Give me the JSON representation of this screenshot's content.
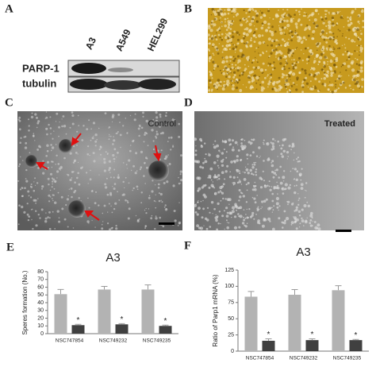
{
  "panels": {
    "A": {
      "label": "A",
      "lanes": [
        "A3",
        "A549",
        "HEL299"
      ],
      "rows": [
        "PARP-1",
        "tubulin"
      ]
    },
    "B": {
      "label": "B"
    },
    "C": {
      "label": "C",
      "caption": "Control"
    },
    "D": {
      "label": "D",
      "caption": "Treated"
    }
  },
  "chart_data": [
    {
      "type": "bar",
      "panel_label": "E",
      "title": "A3",
      "y_label": "Speres formation (No.)",
      "categories": [
        "NSC747854",
        "NSC749232",
        "NSC749235"
      ],
      "series": [
        {
          "color": "#b3b3b3",
          "values": [
            51,
            57,
            57
          ],
          "errors": [
            6,
            4,
            6
          ]
        },
        {
          "color": "#404040",
          "values": [
            11,
            12,
            10
          ],
          "errors": [
            1,
            1,
            1
          ]
        }
      ],
      "annotations": [
        "*",
        "*",
        "*"
      ],
      "ylim": [
        0,
        80
      ],
      "yticks": [
        0,
        10,
        20,
        30,
        40,
        50,
        60,
        70,
        80
      ]
    },
    {
      "type": "bar",
      "panel_label": "F",
      "title": "A3",
      "y_label": "Ratio of Parp1 mRNA (%)",
      "categories": [
        "NSC747854",
        "NSC749232",
        "NSC749235"
      ],
      "series": [
        {
          "color": "#b3b3b3",
          "values": [
            84,
            87,
            94
          ],
          "errors": [
            8,
            8,
            7
          ]
        },
        {
          "color": "#404040",
          "values": [
            16,
            17,
            17
          ],
          "errors": [
            3,
            2,
            1
          ]
        }
      ],
      "annotations": [
        "*",
        "*",
        "*"
      ],
      "ylim": [
        0,
        125
      ],
      "yticks": [
        0,
        25,
        50,
        75,
        100,
        125
      ]
    }
  ]
}
